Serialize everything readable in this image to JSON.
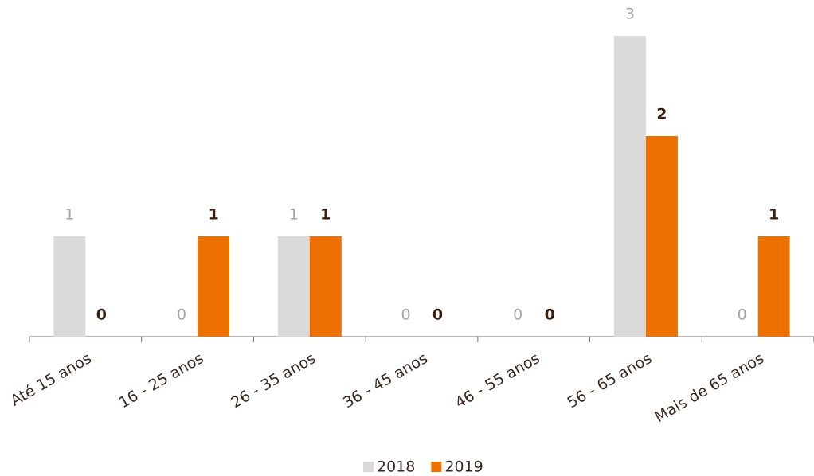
{
  "chart_data": {
    "type": "bar",
    "categories": [
      "Até 15 anos",
      "16 - 25 anos",
      "26 - 35 anos",
      "36 - 45 anos",
      "46 - 55 anos",
      "56 - 65 anos",
      "Mais de 65 anos"
    ],
    "series": [
      {
        "name": "2018",
        "color": "#d9d9d9",
        "values": [
          1,
          0,
          1,
          0,
          0,
          3,
          0
        ]
      },
      {
        "name": "2019",
        "color": "#ed7100",
        "values": [
          0,
          1,
          1,
          0,
          0,
          2,
          1
        ]
      }
    ],
    "ylim": [
      0,
      3
    ],
    "legend": "bottom"
  }
}
